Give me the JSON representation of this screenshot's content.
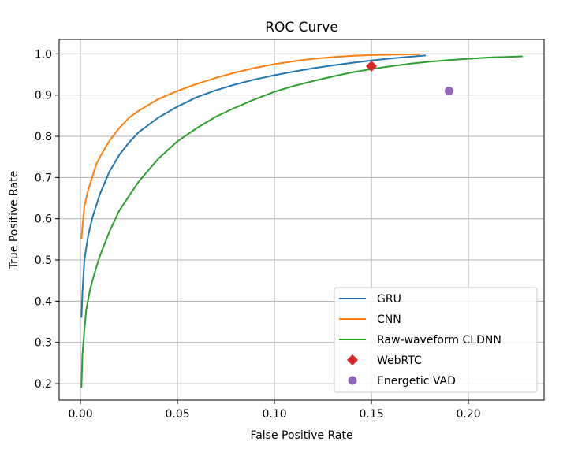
{
  "chart_data": {
    "type": "line",
    "title": "ROC Curve",
    "xlabel": "False Positive Rate",
    "ylabel": "True Positive Rate",
    "xlim": [
      -0.011,
      0.239
    ],
    "ylim": [
      0.16,
      1.035
    ],
    "xticks": [
      {
        "v": 0.0,
        "label": "0.00"
      },
      {
        "v": 0.05,
        "label": "0.05"
      },
      {
        "v": 0.1,
        "label": "0.10"
      },
      {
        "v": 0.15,
        "label": "0.15"
      },
      {
        "v": 0.2,
        "label": "0.20"
      }
    ],
    "yticks": [
      {
        "v": 0.2,
        "label": "0.2"
      },
      {
        "v": 0.3,
        "label": "0.3"
      },
      {
        "v": 0.4,
        "label": "0.4"
      },
      {
        "v": 0.5,
        "label": "0.5"
      },
      {
        "v": 0.6,
        "label": "0.6"
      },
      {
        "v": 0.7,
        "label": "0.7"
      },
      {
        "v": 0.8,
        "label": "0.8"
      },
      {
        "v": 0.9,
        "label": "0.9"
      },
      {
        "v": 1.0,
        "label": "1.0"
      }
    ],
    "grid": true,
    "legend_position": "lower right",
    "series": [
      {
        "name": "GRU",
        "kind": "line",
        "color": "#1f77b4",
        "points": [
          [
            0.0005,
            0.36
          ],
          [
            0.001,
            0.42
          ],
          [
            0.002,
            0.5
          ],
          [
            0.004,
            0.56
          ],
          [
            0.006,
            0.6
          ],
          [
            0.008,
            0.63
          ],
          [
            0.01,
            0.66
          ],
          [
            0.015,
            0.715
          ],
          [
            0.02,
            0.755
          ],
          [
            0.025,
            0.785
          ],
          [
            0.03,
            0.81
          ],
          [
            0.04,
            0.845
          ],
          [
            0.05,
            0.872
          ],
          [
            0.06,
            0.895
          ],
          [
            0.07,
            0.912
          ],
          [
            0.08,
            0.926
          ],
          [
            0.09,
            0.938
          ],
          [
            0.1,
            0.948
          ],
          [
            0.11,
            0.957
          ],
          [
            0.12,
            0.965
          ],
          [
            0.13,
            0.972
          ],
          [
            0.14,
            0.978
          ],
          [
            0.15,
            0.984
          ],
          [
            0.16,
            0.989
          ],
          [
            0.17,
            0.993
          ],
          [
            0.178,
            0.996
          ]
        ]
      },
      {
        "name": "CNN",
        "kind": "line",
        "color": "#ff7f0e",
        "points": [
          [
            0.0005,
            0.55
          ],
          [
            0.001,
            0.58
          ],
          [
            0.002,
            0.63
          ],
          [
            0.004,
            0.67
          ],
          [
            0.006,
            0.7
          ],
          [
            0.008,
            0.73
          ],
          [
            0.01,
            0.75
          ],
          [
            0.015,
            0.79
          ],
          [
            0.02,
            0.82
          ],
          [
            0.025,
            0.845
          ],
          [
            0.03,
            0.862
          ],
          [
            0.04,
            0.89
          ],
          [
            0.05,
            0.91
          ],
          [
            0.06,
            0.927
          ],
          [
            0.07,
            0.942
          ],
          [
            0.08,
            0.955
          ],
          [
            0.09,
            0.966
          ],
          [
            0.1,
            0.975
          ],
          [
            0.11,
            0.982
          ],
          [
            0.12,
            0.988
          ],
          [
            0.13,
            0.992
          ],
          [
            0.14,
            0.995
          ],
          [
            0.15,
            0.997
          ],
          [
            0.16,
            0.998
          ],
          [
            0.175,
            0.999
          ]
        ]
      },
      {
        "name": "Raw-waveform CLDNN",
        "kind": "line",
        "color": "#2ca02c",
        "points": [
          [
            0.0005,
            0.19
          ],
          [
            0.001,
            0.27
          ],
          [
            0.002,
            0.33
          ],
          [
            0.003,
            0.38
          ],
          [
            0.005,
            0.43
          ],
          [
            0.008,
            0.48
          ],
          [
            0.01,
            0.51
          ],
          [
            0.015,
            0.57
          ],
          [
            0.02,
            0.62
          ],
          [
            0.03,
            0.69
          ],
          [
            0.04,
            0.745
          ],
          [
            0.05,
            0.788
          ],
          [
            0.06,
            0.82
          ],
          [
            0.07,
            0.848
          ],
          [
            0.08,
            0.87
          ],
          [
            0.09,
            0.89
          ],
          [
            0.1,
            0.908
          ],
          [
            0.11,
            0.922
          ],
          [
            0.12,
            0.934
          ],
          [
            0.13,
            0.945
          ],
          [
            0.14,
            0.955
          ],
          [
            0.15,
            0.963
          ],
          [
            0.16,
            0.97
          ],
          [
            0.17,
            0.976
          ],
          [
            0.18,
            0.981
          ],
          [
            0.19,
            0.985
          ],
          [
            0.2,
            0.988
          ],
          [
            0.21,
            0.991
          ],
          [
            0.228,
            0.994
          ]
        ]
      },
      {
        "name": "WebRTC",
        "kind": "marker",
        "marker": "diamond",
        "color": "#d62728",
        "points": [
          [
            0.15,
            0.97
          ]
        ]
      },
      {
        "name": "Energetic VAD",
        "kind": "marker",
        "marker": "circle",
        "color": "#9467bd",
        "points": [
          [
            0.19,
            0.91
          ]
        ]
      }
    ]
  }
}
